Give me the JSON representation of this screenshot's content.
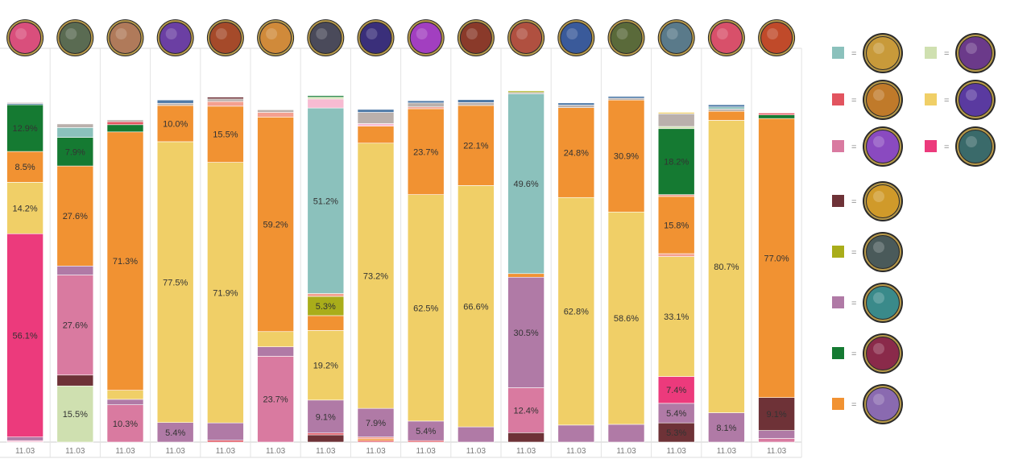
{
  "colors": {
    "teal": "#8bc1bc",
    "red": "#e2545f",
    "pink": "#d97aa0",
    "maroon": "#6e3237",
    "olive": "#a9ad1a",
    "purple": "#b07aa6",
    "green": "#157a32",
    "orange": "#f19232",
    "lightgreen": "#cfe0b0",
    "yellow": "#f0cf67",
    "magenta": "#ec3a7c",
    "gray": "#bab0ac",
    "blue": "#4e79a7",
    "lightpink": "#f7bbd2",
    "salmon": "#f4a08f"
  },
  "legend": [
    {
      "color": "teal",
      "icon": "champion-hammer-icon",
      "eq": "="
    },
    {
      "color": "lightgreen",
      "icon": "champion-purple-beast-icon",
      "eq": "="
    },
    {
      "color": "red",
      "icon": "champion-golden-warrior-icon",
      "eq": "="
    },
    {
      "color": "yellow",
      "icon": "champion-arcane-sigil-icon",
      "eq": "="
    },
    {
      "color": "pink",
      "icon": "champion-purple-orb-icon",
      "eq": "="
    },
    {
      "color": "magenta",
      "icon": "champion-eye-icon",
      "eq": "="
    },
    {
      "color": "maroon",
      "icon": "champion-golden-shield-icon",
      "eq": "="
    },
    {
      "color": "olive",
      "icon": "champion-armored-knight-icon",
      "eq": "="
    },
    {
      "color": "purple",
      "icon": "champion-teal-blade-icon",
      "eq": "="
    },
    {
      "color": "green",
      "icon": "champion-crimson-mage-icon",
      "eq": "="
    },
    {
      "color": "orange",
      "icon": "champion-silver-mage-icon",
      "eq": "="
    }
  ],
  "chart_data": {
    "type": "bar",
    "stacked": true,
    "categories": [
      "11.03",
      "11.03",
      "11.03",
      "11.03",
      "11.03",
      "11.03",
      "11.03",
      "11.03",
      "11.03",
      "11.03",
      "11.03",
      "11.03",
      "11.03",
      "11.03",
      "11.03",
      "11.03"
    ],
    "column_icons": [
      "champion-pink-hair-icon",
      "champion-masked-warrior-icon",
      "champion-bald-fighter-icon",
      "champion-purple-hood-icon",
      "champion-red-armor-icon",
      "champion-yordle-icon",
      "champion-dark-knight-icon",
      "champion-purple-specter-icon",
      "champion-violet-crystal-icon",
      "champion-red-blade-icon",
      "champion-bare-brawler-icon",
      "champion-blue-helm-icon",
      "champion-green-goggles-icon",
      "champion-bearded-elder-icon",
      "champion-red-hair-girl-icon",
      "champion-fire-hair-icon"
    ],
    "stacks": [
      [
        [
          "lightpink",
          0.4,
          ""
        ],
        [
          "purple",
          1.0,
          ""
        ],
        [
          "magenta",
          56.1,
          "56.1%"
        ],
        [
          "yellow",
          14.2,
          "14.2%"
        ],
        [
          "orange",
          8.5,
          "8.5%"
        ],
        [
          "green",
          12.9,
          "12.9%"
        ],
        [
          "blue",
          0.3,
          ""
        ],
        [
          "gray",
          0.3,
          ""
        ]
      ],
      [
        [
          "lightgreen",
          15.5,
          "15.5%"
        ],
        [
          "maroon",
          3.0,
          ""
        ],
        [
          "pink",
          27.6,
          "27.6%"
        ],
        [
          "purple",
          2.5,
          ""
        ],
        [
          "orange",
          27.6,
          "27.6%"
        ],
        [
          "green",
          7.9,
          "7.9%"
        ],
        [
          "teal",
          2.7,
          ""
        ],
        [
          "gray",
          1.0,
          ""
        ]
      ],
      [
        [
          "pink",
          10.3,
          "10.3%"
        ],
        [
          "purple",
          1.5,
          ""
        ],
        [
          "yellow",
          2.5,
          ""
        ],
        [
          "orange",
          71.3,
          "71.3%"
        ],
        [
          "green",
          2.0,
          ""
        ],
        [
          "red",
          0.8,
          ""
        ],
        [
          "gray",
          0.5,
          ""
        ]
      ],
      [
        [
          "purple",
          5.4,
          "5.4%"
        ],
        [
          "yellow",
          77.5,
          "77.5%"
        ],
        [
          "orange",
          10.0,
          "10.0%"
        ],
        [
          "gray",
          0.6,
          ""
        ],
        [
          "blue",
          0.9,
          ""
        ]
      ],
      [
        [
          "red",
          0.5,
          ""
        ],
        [
          "purple",
          4.8,
          ""
        ],
        [
          "yellow",
          71.9,
          "71.9%"
        ],
        [
          "orange",
          15.5,
          "15.5%"
        ],
        [
          "salmon",
          1.3,
          ""
        ],
        [
          "gray",
          0.7,
          ""
        ],
        [
          "maroon",
          0.5,
          ""
        ]
      ],
      [
        [
          "pink",
          23.7,
          "23.7%"
        ],
        [
          "purple",
          2.6,
          ""
        ],
        [
          "yellow",
          4.2,
          ""
        ],
        [
          "orange",
          59.2,
          "59.2%"
        ],
        [
          "salmon",
          1.3,
          ""
        ],
        [
          "gray",
          0.7,
          ""
        ]
      ],
      [
        [
          "maroon",
          2.0,
          ""
        ],
        [
          "red",
          0.5,
          ""
        ],
        [
          "purple",
          9.1,
          "9.1%"
        ],
        [
          "yellow",
          19.2,
          "19.2%"
        ],
        [
          "orange",
          4.1,
          ""
        ],
        [
          "olive",
          5.3,
          "5.3%"
        ],
        [
          "salmon",
          0.8,
          ""
        ],
        [
          "teal",
          51.2,
          "51.2%"
        ],
        [
          "lightpink",
          2.5,
          ""
        ],
        [
          "lightgreen",
          0.5,
          ""
        ],
        [
          "green",
          0.4,
          ""
        ]
      ],
      [
        [
          "red",
          0.4,
          ""
        ],
        [
          "orange",
          0.5,
          ""
        ],
        [
          "salmon",
          0.5,
          ""
        ],
        [
          "purple",
          7.9,
          "7.9%"
        ],
        [
          "yellow",
          73.2,
          "73.2%"
        ],
        [
          "orange",
          4.7,
          ""
        ],
        [
          "lightpink",
          0.7,
          ""
        ],
        [
          "gray",
          3.1,
          ""
        ],
        [
          "blue",
          0.8,
          ""
        ]
      ],
      [
        [
          "red",
          0.4,
          ""
        ],
        [
          "purple",
          5.4,
          "5.4%"
        ],
        [
          "yellow",
          62.5,
          "62.5%"
        ],
        [
          "orange",
          23.7,
          "23.7%"
        ],
        [
          "salmon",
          0.5,
          ""
        ],
        [
          "gray",
          1.1,
          ""
        ],
        [
          "blue",
          0.6,
          ""
        ]
      ],
      [
        [
          "purple",
          4.2,
          ""
        ],
        [
          "yellow",
          66.6,
          "66.6%"
        ],
        [
          "orange",
          22.1,
          "22.1%"
        ],
        [
          "gray",
          0.8,
          ""
        ],
        [
          "blue",
          0.8,
          ""
        ]
      ],
      [
        [
          "maroon",
          2.6,
          ""
        ],
        [
          "pink",
          12.4,
          "12.4%"
        ],
        [
          "purple",
          30.5,
          "30.5%"
        ],
        [
          "orange",
          1.0,
          ""
        ],
        [
          "teal",
          49.6,
          "49.6%"
        ],
        [
          "gray",
          0.4,
          ""
        ],
        [
          "olive",
          0.4,
          ""
        ]
      ],
      [
        [
          "purple",
          4.7,
          ""
        ],
        [
          "yellow",
          62.8,
          "62.8%"
        ],
        [
          "orange",
          24.8,
          "24.8%"
        ],
        [
          "gray",
          0.7,
          ""
        ],
        [
          "blue",
          0.6,
          ""
        ]
      ],
      [
        [
          "purple",
          4.9,
          ""
        ],
        [
          "yellow",
          58.6,
          "58.6%"
        ],
        [
          "orange",
          30.9,
          "30.9%"
        ],
        [
          "gray",
          0.5,
          ""
        ],
        [
          "blue",
          0.5,
          ""
        ]
      ],
      [
        [
          "maroon",
          5.3,
          "5.3%"
        ],
        [
          "purple",
          5.4,
          "5.4%"
        ],
        [
          "magenta",
          7.4,
          "7.4%"
        ],
        [
          "yellow",
          33.1,
          "33.1%"
        ],
        [
          "salmon",
          0.8,
          ""
        ],
        [
          "orange",
          15.8,
          "15.8%"
        ],
        [
          "salmon",
          0.5,
          ""
        ],
        [
          "green",
          18.2,
          "18.2%"
        ],
        [
          "lightgreen",
          0.6,
          ""
        ],
        [
          "gray",
          3.5,
          ""
        ],
        [
          "yellow",
          0.4,
          ""
        ]
      ],
      [
        [
          "purple",
          8.1,
          "8.1%"
        ],
        [
          "yellow",
          80.7,
          "80.7%"
        ],
        [
          "orange",
          2.5,
          ""
        ],
        [
          "gray",
          0.6,
          ""
        ],
        [
          "teal",
          0.6,
          ""
        ],
        [
          "blue",
          0.6,
          ""
        ]
      ],
      [
        [
          "pink",
          1.0,
          ""
        ],
        [
          "purple",
          2.2,
          ""
        ],
        [
          "maroon",
          9.1,
          "9.1%"
        ],
        [
          "orange",
          77.0,
          "77.0%"
        ],
        [
          "green",
          1.0,
          ""
        ],
        [
          "red",
          0.5,
          ""
        ]
      ]
    ]
  }
}
